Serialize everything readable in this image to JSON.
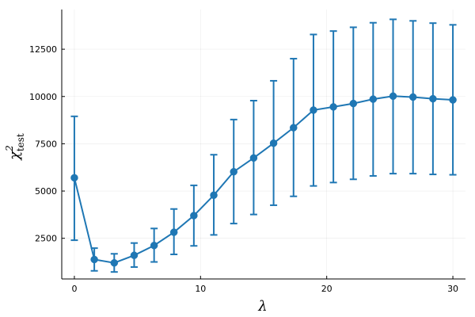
{
  "chart_data": {
    "type": "line",
    "title": "",
    "xlabel": "λ",
    "ylabel": "χ²_test",
    "ylabel_main": "χ",
    "ylabel_sup": "2",
    "ylabel_sub": "test",
    "xlim": [
      -1,
      31
    ],
    "ylim": [
      350,
      14600
    ],
    "xticks": [
      0,
      10,
      20,
      30
    ],
    "yticks": [
      2500,
      5000,
      7500,
      10000,
      12500
    ],
    "xtick_labels": [
      "0",
      "10",
      "20",
      "30"
    ],
    "ytick_labels": [
      "2500",
      "5000",
      "7500",
      "10000",
      "12500"
    ],
    "grid": true,
    "legend": "none",
    "series": [
      {
        "color": "#1f77b4",
        "x": [
          0,
          1.58,
          3.16,
          4.74,
          6.32,
          7.89,
          9.47,
          11.05,
          12.63,
          14.21,
          15.79,
          17.37,
          18.95,
          20.53,
          22.11,
          23.68,
          25.26,
          26.84,
          28.42,
          30
        ],
        "y": [
          5700,
          1380,
          1200,
          1600,
          2120,
          2820,
          3700,
          4780,
          6020,
          6750,
          7530,
          8350,
          9280,
          9450,
          9630,
          9860,
          10020,
          9970,
          9880,
          9820
        ],
        "error_low": [
          2400,
          780,
          720,
          980,
          1250,
          1650,
          2100,
          2680,
          3280,
          3760,
          4250,
          4720,
          5270,
          5450,
          5620,
          5800,
          5920,
          5920,
          5880,
          5860
        ],
        "error_high": [
          8950,
          1980,
          1680,
          2250,
          3020,
          4050,
          5300,
          6920,
          8780,
          9780,
          10830,
          12000,
          13280,
          13460,
          13660,
          13900,
          14080,
          14000,
          13880,
          13790
        ]
      }
    ]
  }
}
